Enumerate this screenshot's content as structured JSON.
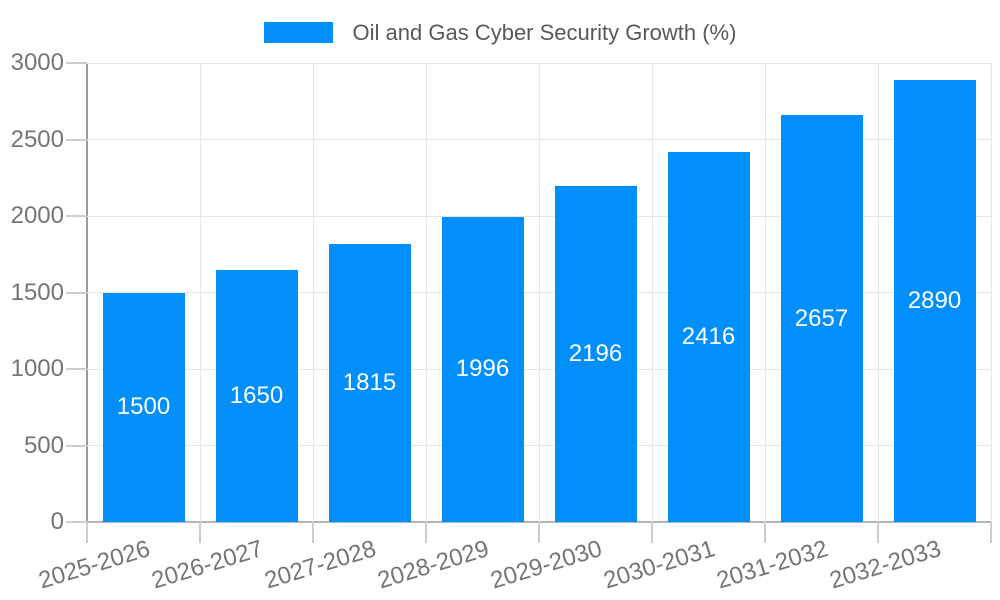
{
  "legend": {
    "label": "Oil and Gas Cyber Security Growth (%)"
  },
  "colors": {
    "bar": "#008FFB",
    "grid": "#e6e6e6",
    "axis": "#9b9b9b",
    "baseline": "#b3b3b3",
    "tick": "#cdcdcd",
    "tick_text": "#757575",
    "legend_text": "#58595b",
    "value_text": "#ffffff"
  },
  "chart_data": {
    "type": "bar",
    "title": "Oil and Gas Cyber Security Growth (%)",
    "categories": [
      "2025-2026",
      "2026-2027",
      "2027-2028",
      "2028-2029",
      "2029-2030",
      "2030-2031",
      "2031-2032",
      "2032-2033"
    ],
    "values": [
      1500,
      1650,
      1815,
      1996,
      2196,
      2416,
      2657,
      2890
    ],
    "xlabel": "",
    "ylabel": "",
    "ylim": [
      0,
      3000
    ],
    "yticks": [
      0,
      500,
      1000,
      1500,
      2000,
      2500,
      3000
    ],
    "grid": true,
    "legend_position": "top",
    "x_label_rotation_deg": -17,
    "value_labels": "centered-inside-bars"
  }
}
